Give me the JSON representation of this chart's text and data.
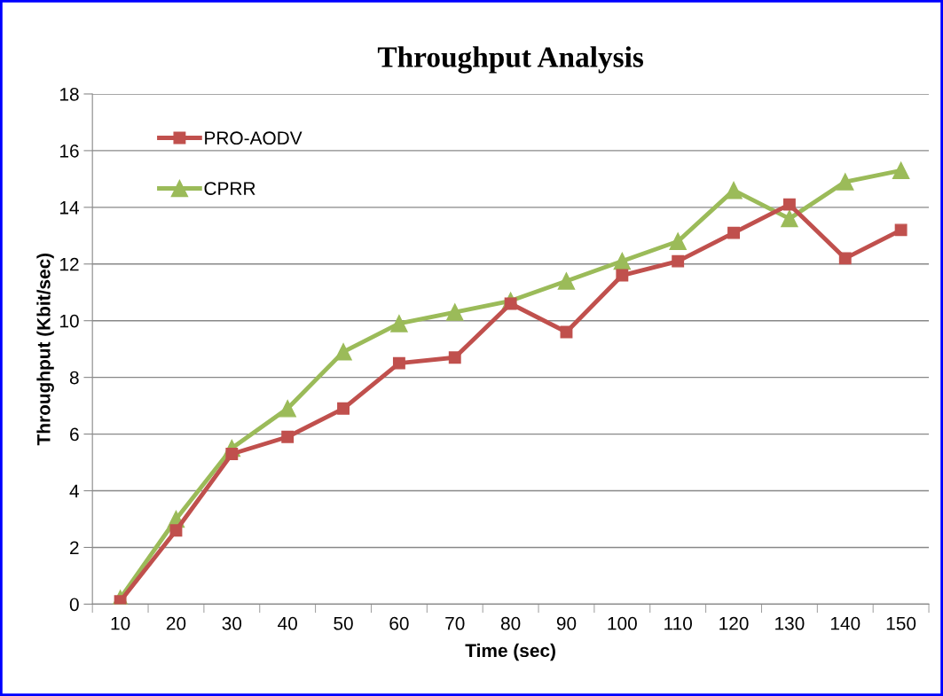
{
  "chart_data": {
    "type": "line",
    "title": "Throughput Analysis",
    "xlabel": "Time (sec)",
    "ylabel": "Throughput (Kbit/sec)",
    "categories": [
      "10",
      "20",
      "30",
      "40",
      "50",
      "60",
      "70",
      "80",
      "90",
      "100",
      "110",
      "120",
      "130",
      "140",
      "150"
    ],
    "series": [
      {
        "name": "PRO-AODV",
        "color": "#c0504d",
        "marker": "square",
        "values": [
          0.1,
          2.6,
          5.3,
          5.9,
          6.9,
          8.5,
          8.7,
          10.6,
          9.6,
          11.6,
          12.1,
          13.1,
          14.1,
          12.2,
          13.2
        ]
      },
      {
        "name": "CPRR",
        "color": "#9bbb59",
        "marker": "triangle",
        "values": [
          0.2,
          3.0,
          5.5,
          6.9,
          8.9,
          9.9,
          10.3,
          10.7,
          11.4,
          12.1,
          12.8,
          14.6,
          13.6,
          14.9,
          15.3
        ]
      }
    ],
    "ylim": [
      0,
      18
    ],
    "yticks": [
      0,
      2,
      4,
      6,
      8,
      10,
      12,
      14,
      16,
      18
    ],
    "grid": "y",
    "legend": "top left",
    "line_style": "solid"
  }
}
